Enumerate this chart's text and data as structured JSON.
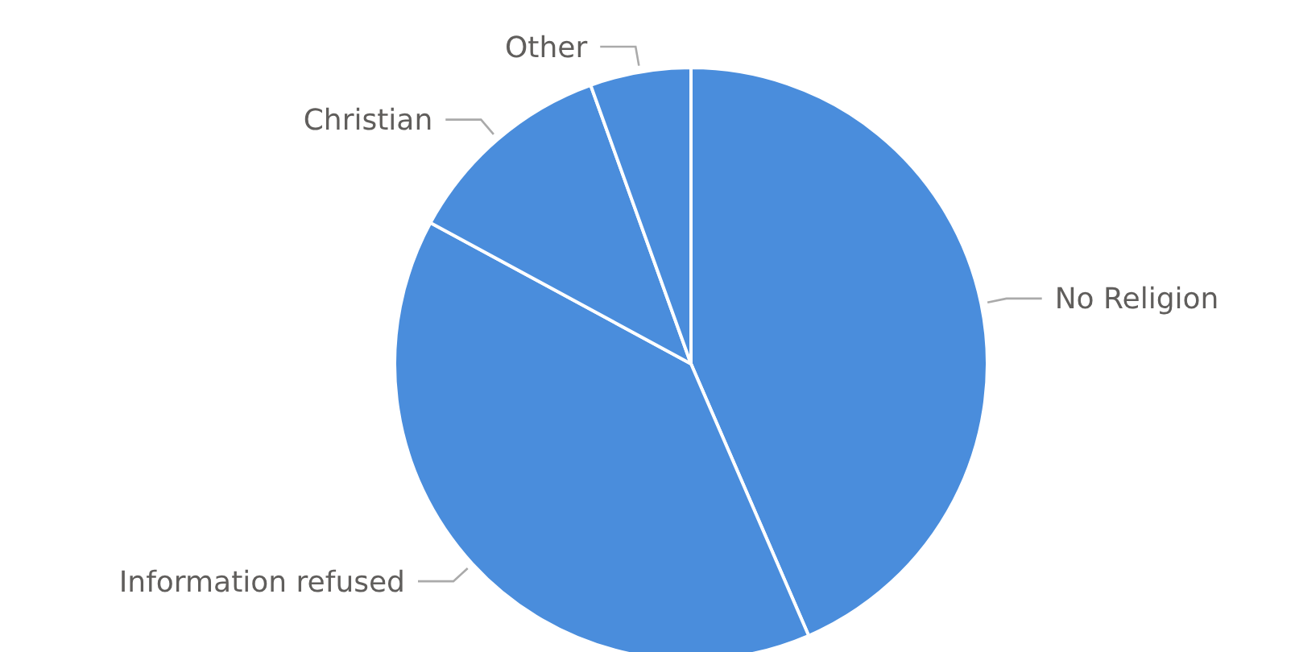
{
  "chart_data": {
    "type": "pie",
    "categories": [
      "No Religion",
      "Information refused",
      "Christian",
      "Other"
    ],
    "values": [
      43.5,
      39.4,
      11.6,
      5.5
    ],
    "colors": [
      "#4a8ddc",
      "#4a8ddc",
      "#4a8ddc",
      "#4a8ddc"
    ]
  }
}
